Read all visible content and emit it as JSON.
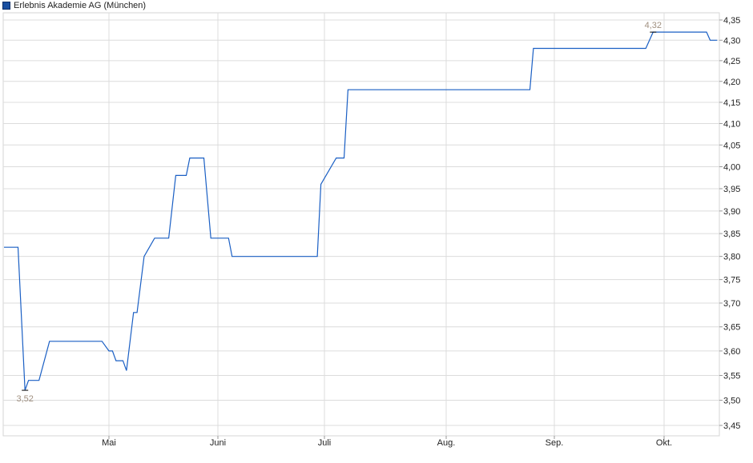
{
  "chart_data": {
    "type": "line",
    "title": "",
    "legend": {
      "label": "Erlebnis Akademie AG (München)",
      "placement": "top-left"
    },
    "series_color": "#1a5fc4",
    "grid": true,
    "y_scale": "log",
    "ylim": [
      3.45,
      4.35
    ],
    "y_ticks": [
      "4,35",
      "4,30",
      "4,25",
      "4,20",
      "4,15",
      "4,10",
      "4,05",
      "4,00",
      "3,95",
      "3,90",
      "3,85",
      "3,80",
      "3,75",
      "3,70",
      "3,65",
      "3,60",
      "3,55",
      "3,50",
      "3,45"
    ],
    "x_ticks": [
      "Mai",
      "Juni",
      "Juli",
      "Aug.",
      "Sep.",
      "Okt."
    ],
    "annotations": [
      {
        "label": "3,52",
        "date": "04-07",
        "value": 3.52,
        "type": "min"
      },
      {
        "label": "4,32",
        "date": "09-28",
        "value": 4.32,
        "type": "max"
      }
    ],
    "points": [
      [
        "04-01",
        3.82
      ],
      [
        "04-05",
        3.82
      ],
      [
        "04-07",
        3.52
      ],
      [
        "04-08",
        3.54
      ],
      [
        "04-11",
        3.54
      ],
      [
        "04-14",
        3.62
      ],
      [
        "04-29",
        3.62
      ],
      [
        "05-01",
        3.6
      ],
      [
        "05-02",
        3.6
      ],
      [
        "05-03",
        3.58
      ],
      [
        "05-05",
        3.58
      ],
      [
        "05-06",
        3.56
      ],
      [
        "05-08",
        3.68
      ],
      [
        "05-09",
        3.68
      ],
      [
        "05-11",
        3.8
      ],
      [
        "05-14",
        3.84
      ],
      [
        "05-18",
        3.84
      ],
      [
        "05-20",
        3.98
      ],
      [
        "05-23",
        3.98
      ],
      [
        "05-24",
        4.02
      ],
      [
        "05-28",
        4.02
      ],
      [
        "05-30",
        3.84
      ],
      [
        "06-04",
        3.84
      ],
      [
        "06-05",
        3.8
      ],
      [
        "06-29",
        3.8
      ],
      [
        "06-30",
        3.96
      ],
      [
        "07-04",
        4.02
      ],
      [
        "07-06",
        4.02
      ],
      [
        "07-07",
        4.18
      ],
      [
        "08-25",
        4.18
      ],
      [
        "08-26",
        4.28
      ],
      [
        "09-26",
        4.28
      ],
      [
        "09-28",
        4.32
      ],
      [
        "10-13",
        4.32
      ],
      [
        "10-14",
        4.3
      ],
      [
        "10-16",
        4.3
      ]
    ]
  }
}
